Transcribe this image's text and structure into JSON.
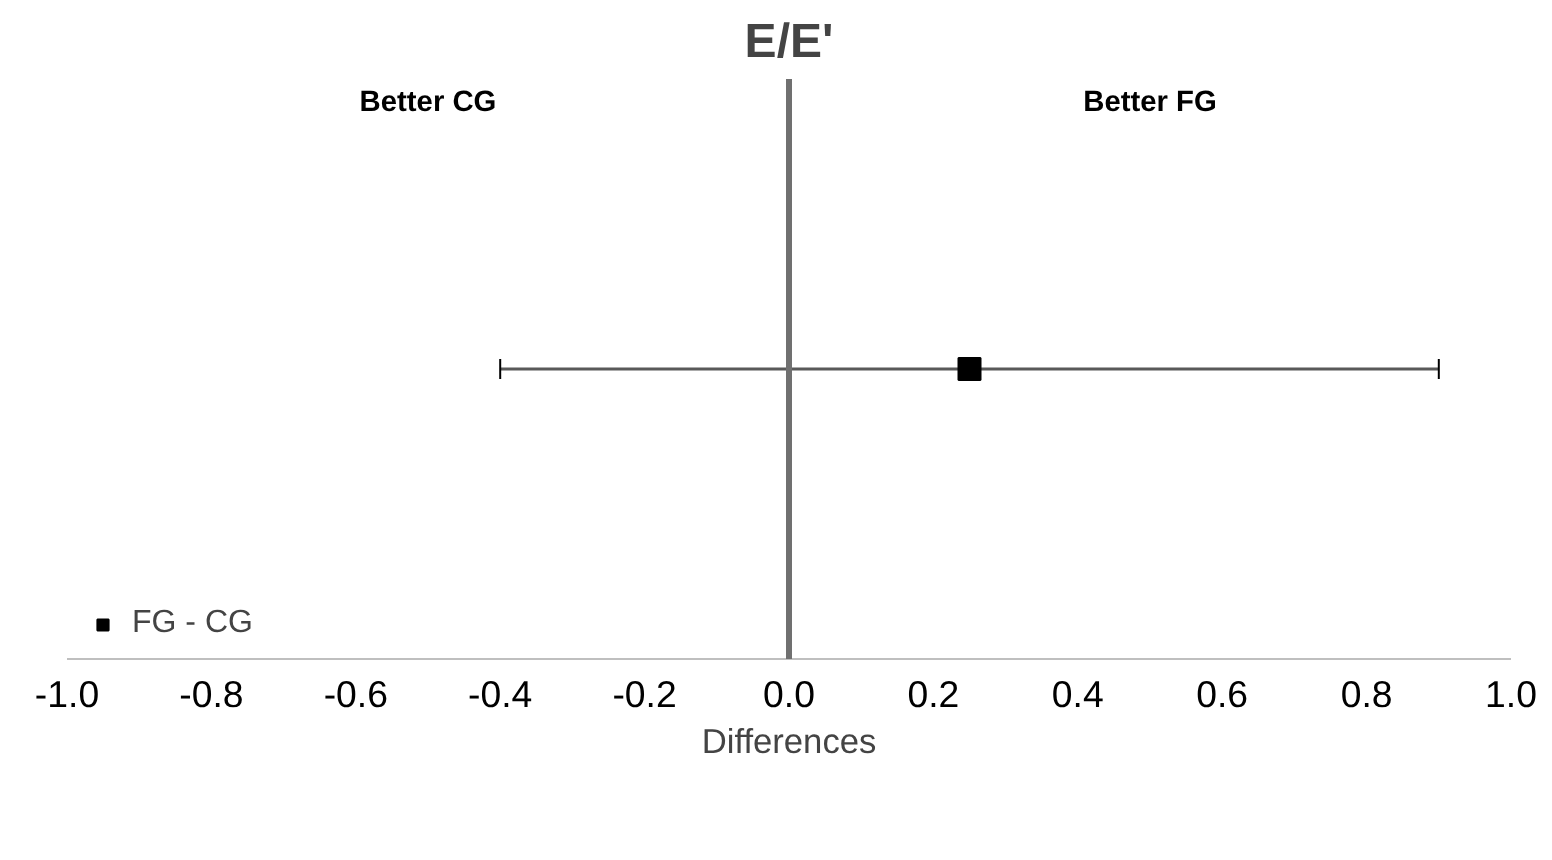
{
  "chart_data": {
    "type": "scatter",
    "orientation": "horizontal",
    "title": "E/E'",
    "xlabel": "Differences",
    "categories": [
      null
    ],
    "series": [
      {
        "name": "FG - CG",
        "color": "#000000",
        "values": [
          0.25
        ],
        "errors": [
          [
            -0.4,
            0.9
          ]
        ]
      }
    ],
    "xlim": [
      -1.0,
      1.0
    ],
    "xticks": [
      {
        "value": -1.0,
        "label": "-1.0"
      },
      {
        "value": -0.8,
        "label": "-0.8"
      },
      {
        "value": -0.6,
        "label": "-0.6"
      },
      {
        "value": -0.4,
        "label": "-0.4"
      },
      {
        "value": -0.2,
        "label": "-0.2"
      },
      {
        "value": 0.0,
        "label": "0.0"
      },
      {
        "value": 0.2,
        "label": "0.2"
      },
      {
        "value": 0.4,
        "label": "0.4"
      },
      {
        "value": 0.6,
        "label": "0.6"
      },
      {
        "value": 0.8,
        "label": "0.8"
      },
      {
        "value": 1.0,
        "label": "1.0"
      }
    ],
    "ref_lines": [
      {
        "axis": "x",
        "value": 0.0,
        "color": "#707070"
      }
    ],
    "annotations": [
      "Better CG",
      "Better FG"
    ],
    "marker": "square",
    "legend": "bottom left",
    "grid": false,
    "tick_labels": "x"
  }
}
